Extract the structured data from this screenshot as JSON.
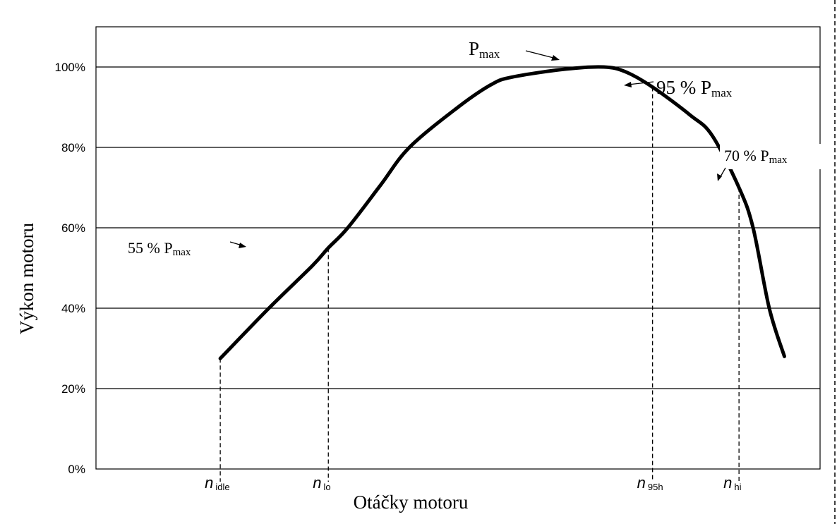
{
  "chart_data": {
    "type": "line",
    "xlabel": "Otáčky motoru",
    "ylabel": "Výkon motoru",
    "ylim": [
      0,
      110
    ],
    "y_ticks": [
      "0%",
      "20%",
      "40%",
      "60%",
      "80%",
      "100%"
    ],
    "y_tick_values": [
      0,
      20,
      40,
      60,
      80,
      100
    ],
    "grid": "horizontal",
    "xlim": [
      -1.15,
      5.55
    ],
    "x_markers": [
      {
        "id": "idle",
        "n": "n",
        "sub": "idle",
        "x": 0,
        "y": 27.5
      },
      {
        "id": "lo",
        "n": "n",
        "sub": "lo",
        "x": 1,
        "y": 55
      },
      {
        "id": "95h",
        "n": "n",
        "sub": "95h",
        "x": 4,
        "y": 95
      },
      {
        "id": "hi",
        "n": "n",
        "sub": "hi",
        "x": 4.8,
        "y": 70
      }
    ],
    "series": [
      {
        "x": [
          0,
          0.45,
          0.85,
          1,
          1.18,
          1.48,
          1.75,
          2.2,
          2.5,
          2.7,
          3.2,
          3.55,
          3.75,
          4,
          4.35,
          4.55,
          4.8,
          4.93,
          5.08,
          5.22
        ],
        "values": [
          27.5,
          40,
          50.5,
          55,
          60,
          70.5,
          80,
          90,
          95.5,
          97.5,
          99.5,
          100,
          98.8,
          95,
          88,
          83,
          70,
          60,
          40,
          28
        ]
      }
    ],
    "annotations": [
      {
        "id": "pmax",
        "base": "P",
        "sub": "max"
      },
      {
        "id": "p95",
        "base": "95 % P",
        "sub": "max"
      },
      {
        "id": "p70",
        "base": "70 % P",
        "sub": "max"
      },
      {
        "id": "p55",
        "base": "55 % P",
        "sub": "max"
      }
    ]
  }
}
